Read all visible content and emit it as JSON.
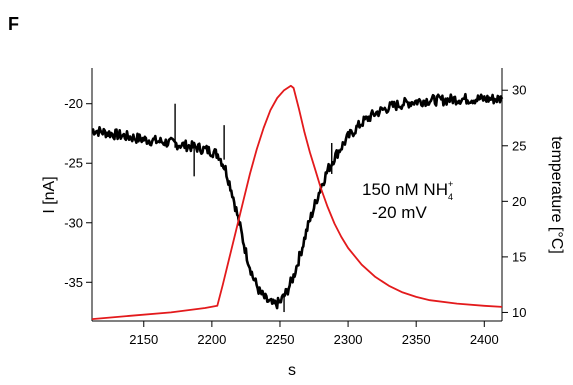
{
  "panel_label": "F",
  "chart_data": {
    "type": "line",
    "title": "",
    "xlabel": "s",
    "ylabel_left": "I [nA]",
    "ylabel_right": "temperature [°C]",
    "xlim": [
      2112,
      2413
    ],
    "ylim_left": [
      -38.0,
      -17.0
    ],
    "ylim_right": [
      9.5,
      32.0
    ],
    "xticks": [
      2150,
      2200,
      2250,
      2300,
      2350,
      2400
    ],
    "yticks_left": [
      -35,
      -30,
      -25,
      -20
    ],
    "yticks_right": [
      10,
      15,
      20,
      25,
      30
    ],
    "annotation": {
      "line1_main": "150 nM NH",
      "line1_sub": "4",
      "line1_sup": "+",
      "line2": "-20 mV"
    },
    "series": [
      {
        "axis": "left",
        "color": "#000000",
        "x": [
          2112,
          2130,
          2150,
          2170,
          2190,
          2200,
          2205,
          2210,
          2215,
          2220,
          2225,
          2230,
          2235,
          2240,
          2245,
          2250,
          2255,
          2260,
          2265,
          2270,
          2275,
          2280,
          2285,
          2290,
          2300,
          2310,
          2320,
          2330,
          2340,
          2350,
          2360,
          2370,
          2380,
          2390,
          2400,
          2413
        ],
        "y": [
          -22.2,
          -22.6,
          -23.0,
          -23.3,
          -23.7,
          -24.0,
          -24.3,
          -25.5,
          -27.5,
          -30.0,
          -32.5,
          -34.5,
          -35.8,
          -36.5,
          -36.9,
          -36.7,
          -35.8,
          -34.5,
          -32.6,
          -30.5,
          -28.7,
          -27.0,
          -25.6,
          -24.5,
          -22.8,
          -21.6,
          -20.8,
          -20.3,
          -20.0,
          -19.8,
          -19.7,
          -19.7,
          -19.6,
          -19.6,
          -19.6,
          -19.6
        ],
        "spikes": [
          {
            "x": 2173,
            "y1": -23.7,
            "y2": -20.0
          },
          {
            "x": 2187,
            "y1": -26.1,
            "y2": -23.5
          },
          {
            "x": 2209,
            "y1": -24.7,
            "y2": -21.8
          },
          {
            "x": 2253,
            "y1": -37.5,
            "y2": -35.9
          },
          {
            "x": 2288,
            "y1": -25.9,
            "y2": -23.3
          }
        ]
      },
      {
        "axis": "right",
        "color": "#e31a1c",
        "x": [
          2112,
          2140,
          2170,
          2195,
          2204,
          2208,
          2213,
          2218,
          2223,
          2228,
          2233,
          2238,
          2243,
          2248,
          2253,
          2258,
          2260,
          2264,
          2268,
          2272,
          2276,
          2280,
          2285,
          2290,
          2295,
          2300,
          2310,
          2320,
          2330,
          2340,
          2350,
          2360,
          2380,
          2400,
          2413
        ],
        "y": [
          9.4,
          9.7,
          10.0,
          10.4,
          10.6,
          12.5,
          15.0,
          17.5,
          20.0,
          22.5,
          24.7,
          26.6,
          28.2,
          29.3,
          30.0,
          30.4,
          30.2,
          28.3,
          26.2,
          24.4,
          22.8,
          21.2,
          19.5,
          18.0,
          16.8,
          15.8,
          14.3,
          13.2,
          12.4,
          11.8,
          11.4,
          11.1,
          10.8,
          10.6,
          10.5
        ]
      }
    ]
  }
}
